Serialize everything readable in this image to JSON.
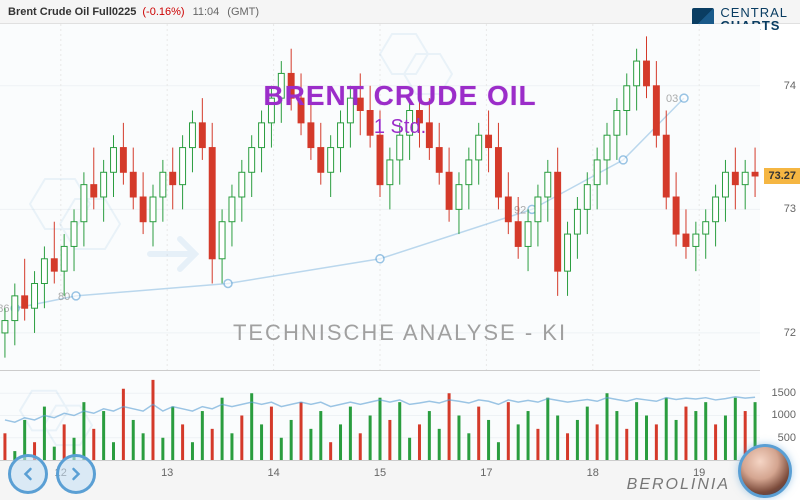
{
  "header": {
    "symbol": "Brent Crude Oil Full0225",
    "change": "(-0.16%)",
    "time": "11:04",
    "tz": "(GMT)"
  },
  "logo": {
    "line1": "CENTRAL",
    "line2": "CHARTS"
  },
  "title": {
    "main": "BRENT CRUDE OIL",
    "sub": "1 Std."
  },
  "section_title": "TECHNISCHE  ANALYSE - KI",
  "berolinia": "BEROLINIA",
  "colors": {
    "up": "#2a9d3f",
    "down": "#d43a2a",
    "overlay_line": "#5a9fd4",
    "title": "#9b2dc9",
    "grid": "#eef2f5",
    "price_badge_bg": "#f5b642",
    "nav_ring": "#5a9fd4"
  },
  "price_chart": {
    "ylim": [
      71.7,
      74.5
    ],
    "yticks": [
      72,
      73,
      74
    ],
    "current_price": 73.27,
    "candles": [
      {
        "o": 72.0,
        "h": 72.2,
        "l": 71.8,
        "c": 72.1
      },
      {
        "o": 72.1,
        "h": 72.4,
        "l": 71.9,
        "c": 72.3
      },
      {
        "o": 72.3,
        "h": 72.6,
        "l": 72.1,
        "c": 72.2
      },
      {
        "o": 72.2,
        "h": 72.5,
        "l": 72.0,
        "c": 72.4
      },
      {
        "o": 72.4,
        "h": 72.7,
        "l": 72.2,
        "c": 72.6
      },
      {
        "o": 72.6,
        "h": 72.9,
        "l": 72.4,
        "c": 72.5
      },
      {
        "o": 72.5,
        "h": 72.8,
        "l": 72.3,
        "c": 72.7
      },
      {
        "o": 72.7,
        "h": 73.0,
        "l": 72.5,
        "c": 72.9
      },
      {
        "o": 72.9,
        "h": 73.3,
        "l": 72.7,
        "c": 73.2
      },
      {
        "o": 73.2,
        "h": 73.5,
        "l": 73.0,
        "c": 73.1
      },
      {
        "o": 73.1,
        "h": 73.4,
        "l": 72.9,
        "c": 73.3
      },
      {
        "o": 73.3,
        "h": 73.6,
        "l": 73.1,
        "c": 73.5
      },
      {
        "o": 73.5,
        "h": 73.7,
        "l": 73.2,
        "c": 73.3
      },
      {
        "o": 73.3,
        "h": 73.5,
        "l": 73.0,
        "c": 73.1
      },
      {
        "o": 73.1,
        "h": 73.3,
        "l": 72.8,
        "c": 72.9
      },
      {
        "o": 72.9,
        "h": 73.2,
        "l": 72.7,
        "c": 73.1
      },
      {
        "o": 73.1,
        "h": 73.4,
        "l": 72.9,
        "c": 73.3
      },
      {
        "o": 73.3,
        "h": 73.5,
        "l": 73.0,
        "c": 73.2
      },
      {
        "o": 73.2,
        "h": 73.6,
        "l": 73.0,
        "c": 73.5
      },
      {
        "o": 73.5,
        "h": 73.8,
        "l": 73.3,
        "c": 73.7
      },
      {
        "o": 73.7,
        "h": 73.9,
        "l": 73.4,
        "c": 73.5
      },
      {
        "o": 73.5,
        "h": 73.7,
        "l": 72.4,
        "c": 72.6
      },
      {
        "o": 72.6,
        "h": 73.0,
        "l": 72.4,
        "c": 72.9
      },
      {
        "o": 72.9,
        "h": 73.2,
        "l": 72.7,
        "c": 73.1
      },
      {
        "o": 73.1,
        "h": 73.4,
        "l": 72.9,
        "c": 73.3
      },
      {
        "o": 73.3,
        "h": 73.6,
        "l": 73.1,
        "c": 73.5
      },
      {
        "o": 73.5,
        "h": 73.8,
        "l": 73.3,
        "c": 73.7
      },
      {
        "o": 73.7,
        "h": 74.0,
        "l": 73.5,
        "c": 73.9
      },
      {
        "o": 73.9,
        "h": 74.2,
        "l": 73.7,
        "c": 74.1
      },
      {
        "o": 74.1,
        "h": 74.3,
        "l": 73.8,
        "c": 73.9
      },
      {
        "o": 73.9,
        "h": 74.1,
        "l": 73.6,
        "c": 73.7
      },
      {
        "o": 73.7,
        "h": 73.9,
        "l": 73.4,
        "c": 73.5
      },
      {
        "o": 73.5,
        "h": 73.7,
        "l": 73.2,
        "c": 73.3
      },
      {
        "o": 73.3,
        "h": 73.6,
        "l": 73.1,
        "c": 73.5
      },
      {
        "o": 73.5,
        "h": 73.8,
        "l": 73.3,
        "c": 73.7
      },
      {
        "o": 73.7,
        "h": 74.0,
        "l": 73.5,
        "c": 73.9
      },
      {
        "o": 73.9,
        "h": 74.1,
        "l": 73.6,
        "c": 73.8
      },
      {
        "o": 73.8,
        "h": 74.0,
        "l": 73.5,
        "c": 73.6
      },
      {
        "o": 73.6,
        "h": 73.8,
        "l": 73.1,
        "c": 73.2
      },
      {
        "o": 73.2,
        "h": 73.5,
        "l": 73.0,
        "c": 73.4
      },
      {
        "o": 73.4,
        "h": 73.7,
        "l": 73.2,
        "c": 73.6
      },
      {
        "o": 73.6,
        "h": 73.9,
        "l": 73.4,
        "c": 73.8
      },
      {
        "o": 73.8,
        "h": 74.0,
        "l": 73.5,
        "c": 73.7
      },
      {
        "o": 73.7,
        "h": 73.9,
        "l": 73.4,
        "c": 73.5
      },
      {
        "o": 73.5,
        "h": 73.7,
        "l": 73.2,
        "c": 73.3
      },
      {
        "o": 73.3,
        "h": 73.5,
        "l": 72.9,
        "c": 73.0
      },
      {
        "o": 73.0,
        "h": 73.3,
        "l": 72.8,
        "c": 73.2
      },
      {
        "o": 73.2,
        "h": 73.5,
        "l": 73.0,
        "c": 73.4
      },
      {
        "o": 73.4,
        "h": 73.7,
        "l": 73.2,
        "c": 73.6
      },
      {
        "o": 73.6,
        "h": 73.8,
        "l": 73.3,
        "c": 73.5
      },
      {
        "o": 73.5,
        "h": 73.7,
        "l": 73.0,
        "c": 73.1
      },
      {
        "o": 73.1,
        "h": 73.3,
        "l": 72.8,
        "c": 72.9
      },
      {
        "o": 72.9,
        "h": 73.1,
        "l": 72.6,
        "c": 72.7
      },
      {
        "o": 72.7,
        "h": 73.0,
        "l": 72.5,
        "c": 72.9
      },
      {
        "o": 72.9,
        "h": 73.2,
        "l": 72.7,
        "c": 73.1
      },
      {
        "o": 73.1,
        "h": 73.4,
        "l": 72.9,
        "c": 73.3
      },
      {
        "o": 73.3,
        "h": 73.5,
        "l": 72.3,
        "c": 72.5
      },
      {
        "o": 72.5,
        "h": 72.9,
        "l": 72.3,
        "c": 72.8
      },
      {
        "o": 72.8,
        "h": 73.1,
        "l": 72.6,
        "c": 73.0
      },
      {
        "o": 73.0,
        "h": 73.3,
        "l": 72.8,
        "c": 73.2
      },
      {
        "o": 73.2,
        "h": 73.5,
        "l": 73.0,
        "c": 73.4
      },
      {
        "o": 73.4,
        "h": 73.7,
        "l": 73.2,
        "c": 73.6
      },
      {
        "o": 73.6,
        "h": 73.9,
        "l": 73.4,
        "c": 73.8
      },
      {
        "o": 73.8,
        "h": 74.1,
        "l": 73.6,
        "c": 74.0
      },
      {
        "o": 74.0,
        "h": 74.3,
        "l": 73.8,
        "c": 74.2
      },
      {
        "o": 74.2,
        "h": 74.4,
        "l": 73.9,
        "c": 74.0
      },
      {
        "o": 74.0,
        "h": 74.2,
        "l": 73.5,
        "c": 73.6
      },
      {
        "o": 73.6,
        "h": 73.8,
        "l": 73.0,
        "c": 73.1
      },
      {
        "o": 73.1,
        "h": 73.3,
        "l": 72.7,
        "c": 72.8
      },
      {
        "o": 72.8,
        "h": 73.0,
        "l": 72.6,
        "c": 72.7
      },
      {
        "o": 72.7,
        "h": 72.9,
        "l": 72.5,
        "c": 72.8
      },
      {
        "o": 72.8,
        "h": 73.0,
        "l": 72.6,
        "c": 72.9
      },
      {
        "o": 72.9,
        "h": 73.2,
        "l": 72.7,
        "c": 73.1
      },
      {
        "o": 73.1,
        "h": 73.4,
        "l": 72.9,
        "c": 73.3
      },
      {
        "o": 73.3,
        "h": 73.5,
        "l": 73.0,
        "c": 73.2
      },
      {
        "o": 73.2,
        "h": 73.4,
        "l": 73.0,
        "c": 73.3
      },
      {
        "o": 73.3,
        "h": 73.5,
        "l": 73.1,
        "c": 73.27
      }
    ],
    "overlay_points": [
      {
        "x": 0.02,
        "y": 72.2,
        "label": "86"
      },
      {
        "x": 0.1,
        "y": 72.3,
        "label": "80"
      },
      {
        "x": 0.3,
        "y": 72.4,
        "label": ""
      },
      {
        "x": 0.5,
        "y": 72.6,
        "label": ""
      },
      {
        "x": 0.7,
        "y": 73.0,
        "label": "92"
      },
      {
        "x": 0.82,
        "y": 73.4,
        "label": ""
      },
      {
        "x": 0.9,
        "y": 73.9,
        "label": "03"
      }
    ]
  },
  "volume_chart": {
    "ylim": [
      0,
      2000
    ],
    "yticks": [
      500,
      1000,
      1500
    ],
    "bars": [
      600,
      200,
      900,
      400,
      1200,
      300,
      800,
      500,
      1300,
      700,
      1100,
      400,
      1600,
      900,
      600,
      1800,
      500,
      1200,
      800,
      400,
      1100,
      700,
      1400,
      600,
      1000,
      1500,
      800,
      1200,
      500,
      900,
      1300,
      700,
      1100,
      400,
      800,
      1200,
      600,
      1000,
      1400,
      900,
      1300,
      500,
      800,
      1100,
      700,
      1500,
      1000,
      600,
      1200,
      900,
      400,
      1300,
      800,
      1100,
      700,
      1400,
      1000,
      600,
      900,
      1200,
      800,
      1500,
      1100,
      700,
      1300,
      1000,
      800,
      1400,
      900,
      1200,
      1100,
      1300,
      800,
      1000,
      1400,
      1100,
      1300
    ],
    "line": [
      900,
      850,
      950,
      900,
      1000,
      950,
      1050,
      1000,
      1100,
      1050,
      1150,
      1100,
      1200,
      1150,
      1100,
      1250,
      1100,
      1200,
      1150,
      1100,
      1200,
      1150,
      1250,
      1200,
      1250,
      1300,
      1250,
      1300,
      1200,
      1250,
      1300,
      1250,
      1300,
      1200,
      1250,
      1300,
      1250,
      1300,
      1350,
      1300,
      1350,
      1250,
      1280,
      1320,
      1280,
      1350,
      1320,
      1280,
      1350,
      1320,
      1250,
      1350,
      1300,
      1340,
      1300,
      1380,
      1340,
      1300,
      1330,
      1360,
      1320,
      1400,
      1360,
      1320,
      1380,
      1350,
      1320,
      1400,
      1360,
      1390,
      1370,
      1400,
      1350,
      1380,
      1420,
      1390,
      1410
    ]
  },
  "x_axis": {
    "ticks": [
      {
        "pos": 0.08,
        "label": "12"
      },
      {
        "pos": 0.22,
        "label": "13"
      },
      {
        "pos": 0.36,
        "label": "14"
      },
      {
        "pos": 0.5,
        "label": "15"
      },
      {
        "pos": 0.64,
        "label": "17"
      },
      {
        "pos": 0.78,
        "label": "18"
      },
      {
        "pos": 0.92,
        "label": "19"
      }
    ]
  }
}
